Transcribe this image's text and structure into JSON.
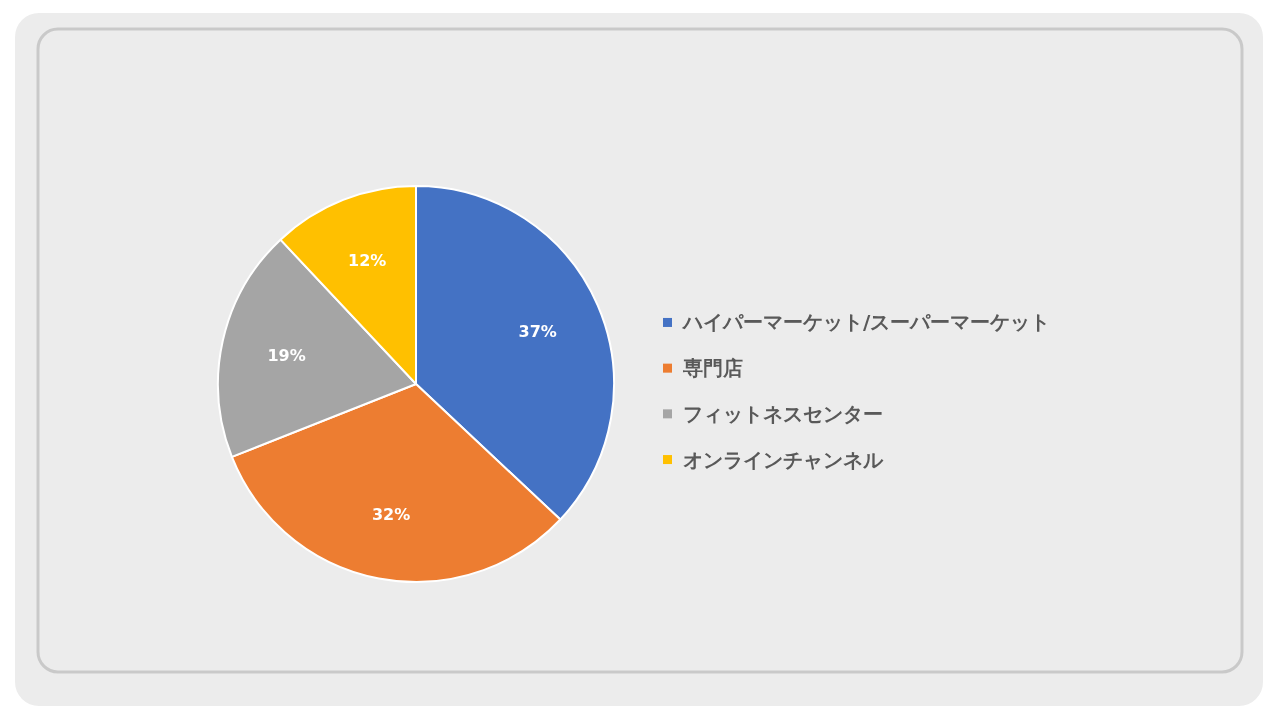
{
  "chart_data": {
    "type": "pie",
    "categories": [
      "ハイパーマーケット/スーパーマーケット",
      "専門店",
      "フィットネスセンター",
      "オンラインチャンネル"
    ],
    "values": [
      37,
      32,
      19,
      12
    ],
    "colors": [
      "#4472c4",
      "#ed7d31",
      "#a5a5a5",
      "#ffc000"
    ],
    "value_labels": [
      "37%",
      "32%",
      "19%",
      "12%"
    ],
    "legend": "right"
  }
}
